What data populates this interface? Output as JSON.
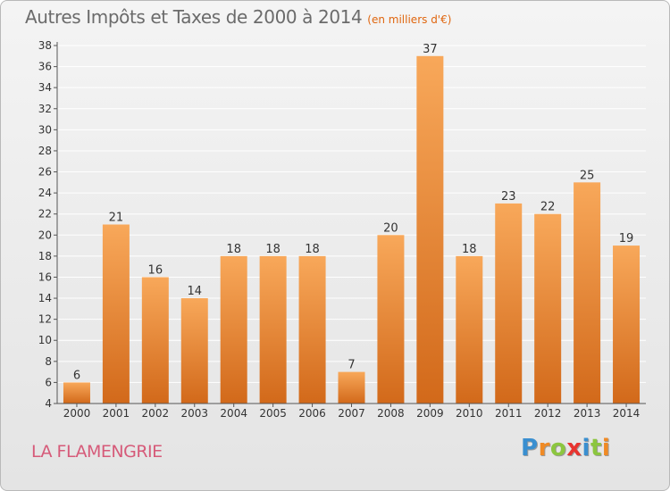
{
  "header": {
    "title": "Autres Impôts et Taxes de 2000 à 2014",
    "subtitle": "(en milliers d'€)"
  },
  "footer": {
    "commune": "LA FLAMENGRIE",
    "logo_letters": [
      "P",
      "r",
      "o",
      "x",
      "i",
      "t",
      "i"
    ],
    "logo_colors": [
      "#3a8fd0",
      "#f08a24",
      "#8cc63f",
      "#e8342f",
      "#3a8fd0",
      "#8cc63f",
      "#f08a24"
    ]
  },
  "colors": {
    "bar_top": "#f8a85a",
    "bar_bottom": "#d2691a",
    "axis_text": "#333333",
    "grid": "#ffffff"
  },
  "chart_data": {
    "type": "bar",
    "title": "Autres Impôts et Taxes de 2000 à 2014",
    "subtitle": "(en milliers d'€)",
    "categories": [
      "2000",
      "2001",
      "2002",
      "2003",
      "2004",
      "2005",
      "2006",
      "2007",
      "2008",
      "2009",
      "2010",
      "2011",
      "2012",
      "2013",
      "2014"
    ],
    "values": [
      6,
      21,
      16,
      14,
      18,
      18,
      18,
      7,
      20,
      37,
      18,
      23,
      22,
      25,
      19
    ],
    "ylim": [
      4,
      38
    ],
    "yticks": [
      4,
      6,
      8,
      10,
      12,
      14,
      16,
      18,
      20,
      22,
      24,
      26,
      28,
      30,
      32,
      34,
      36,
      38
    ],
    "grid": true,
    "data_labels": true
  }
}
